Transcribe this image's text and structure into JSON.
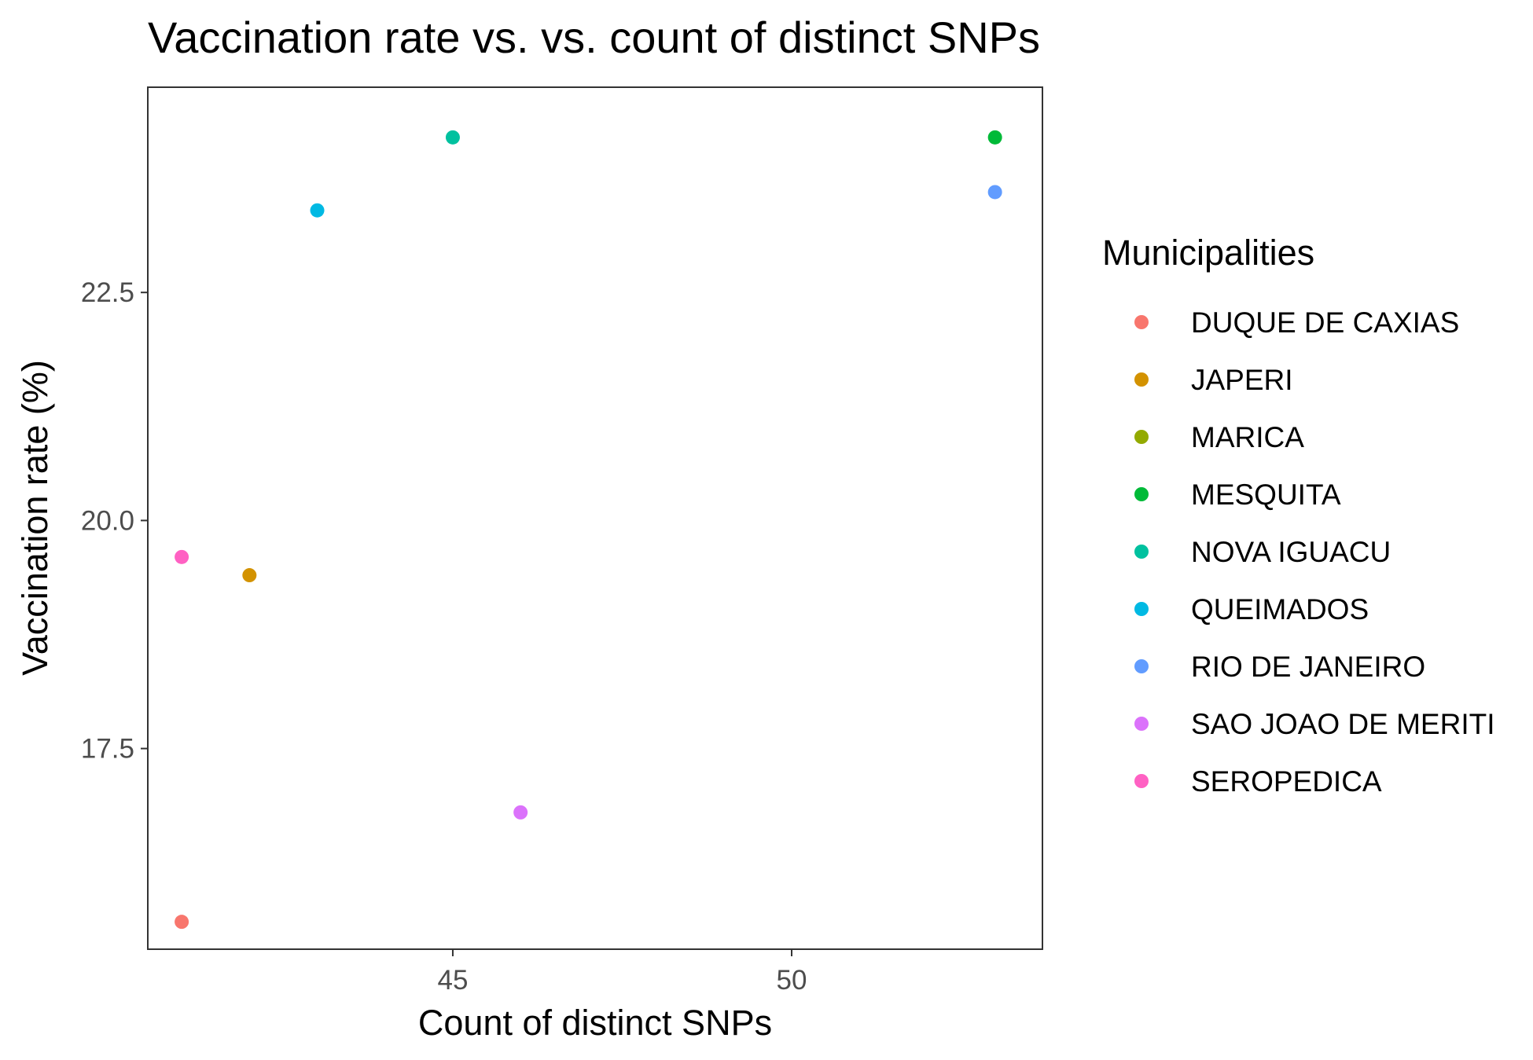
{
  "chart_data": {
    "type": "scatter",
    "title": "Vaccination rate vs. vs. count of distinct SNPs",
    "xlabel": "Count of distinct SNPs",
    "ylabel": "Vaccination rate (%)",
    "xlim": [
      40.5,
      53.7
    ],
    "ylim": [
      15.3,
      24.75
    ],
    "x_ticks": [
      45,
      50
    ],
    "x_tick_labels": [
      "45",
      "50"
    ],
    "y_ticks": [
      17.5,
      20.0,
      22.5
    ],
    "y_tick_labels": [
      "17.5",
      "20.0",
      "22.5"
    ],
    "grid": false,
    "legend": {
      "title": "Municipalities",
      "position": "right"
    },
    "series": [
      {
        "name": "DUQUE DE CAXIAS",
        "color": "#F8766D",
        "points": [
          {
            "x": 41,
            "y": 15.6
          }
        ]
      },
      {
        "name": "JAPERI",
        "color": "#D39200",
        "points": [
          {
            "x": 42,
            "y": 19.4
          }
        ]
      },
      {
        "name": "MARICA",
        "color": "#93AA00",
        "points": []
      },
      {
        "name": "MESQUITA",
        "color": "#00BA38",
        "points": [
          {
            "x": 53,
            "y": 24.2
          }
        ]
      },
      {
        "name": "NOVA IGUACU",
        "color": "#00C19F",
        "points": [
          {
            "x": 45,
            "y": 24.2
          }
        ]
      },
      {
        "name": "QUEIMADOS",
        "color": "#00B9E3",
        "points": [
          {
            "x": 43,
            "y": 23.4
          }
        ]
      },
      {
        "name": "RIO DE JANEIRO",
        "color": "#619CFF",
        "points": [
          {
            "x": 53,
            "y": 23.6
          }
        ]
      },
      {
        "name": "SAO JOAO DE MERITI",
        "color": "#DB72FB",
        "points": [
          {
            "x": 46,
            "y": 16.8
          }
        ]
      },
      {
        "name": "SEROPEDICA",
        "color": "#FF61C3",
        "points": [
          {
            "x": 41,
            "y": 19.6
          }
        ]
      }
    ]
  }
}
